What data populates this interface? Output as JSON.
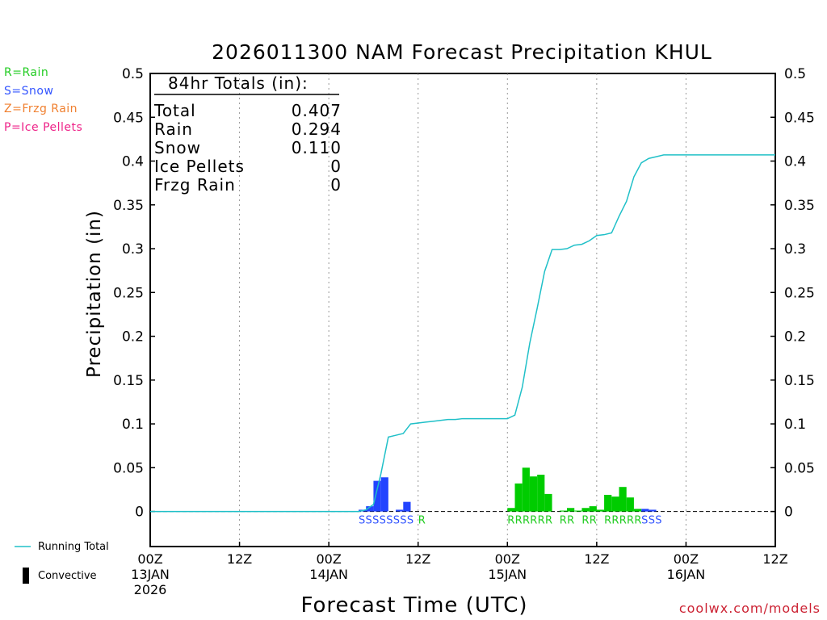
{
  "title": "2026011300 NAM Forecast Precipitation KHUL",
  "legend": [
    {
      "label": "R=Rain",
      "color": "#22cc22"
    },
    {
      "label": "S=Snow",
      "color": "#3355ff"
    },
    {
      "label": "Z=Frzg Rain",
      "color": "#f08030"
    },
    {
      "label": "P=Ice Pellets",
      "color": "#ee2288"
    }
  ],
  "bottom_legend": {
    "running_total": "Running Total",
    "convective": "Convective"
  },
  "totals": {
    "title": "84hr Totals (in):",
    "rows": [
      {
        "label": "Total",
        "value": "0.407"
      },
      {
        "label": "Rain",
        "value": "0.294"
      },
      {
        "label": "Snow",
        "value": "0.110"
      },
      {
        "label": "Ice Pellets",
        "value": "0"
      },
      {
        "label": "Frzg Rain",
        "value": "0"
      }
    ]
  },
  "watermark": "coolwx.com/models",
  "chart_data": {
    "type": "bar",
    "title": "2026011300 NAM Forecast Precipitation KHUL",
    "xlabel": "Forecast Time (UTC)",
    "ylabel": "Precipitation (in)",
    "ylim": [
      -0.04,
      0.5
    ],
    "xlim_hours": [
      0,
      84
    ],
    "yticks": [
      {
        "v": 0,
        "label": "0"
      },
      {
        "v": 0.05,
        "label": "0.05"
      },
      {
        "v": 0.1,
        "label": "0.1"
      },
      {
        "v": 0.15,
        "label": "0.15"
      },
      {
        "v": 0.2,
        "label": "0.2"
      },
      {
        "v": 0.25,
        "label": "0.25"
      },
      {
        "v": 0.3,
        "label": "0.3"
      },
      {
        "v": 0.35,
        "label": "0.35"
      },
      {
        "v": 0.4,
        "label": "0.4"
      },
      {
        "v": 0.45,
        "label": "0.45"
      },
      {
        "v": 0.5,
        "label": "0.5"
      }
    ],
    "xticks": [
      {
        "hour": 0,
        "lines": [
          "00Z",
          "13JAN",
          "2026"
        ]
      },
      {
        "hour": 12,
        "lines": [
          "12Z"
        ]
      },
      {
        "hour": 24,
        "lines": [
          "00Z",
          "14JAN"
        ]
      },
      {
        "hour": 36,
        "lines": [
          "12Z"
        ]
      },
      {
        "hour": 48,
        "lines": [
          "00Z",
          "15JAN"
        ]
      },
      {
        "hour": 60,
        "lines": [
          "12Z"
        ]
      },
      {
        "hour": 72,
        "lines": [
          "00Z",
          "16JAN"
        ]
      },
      {
        "hour": 84,
        "lines": [
          "12Z"
        ]
      }
    ],
    "series": [
      {
        "name": "Snow",
        "color": "#2244ff",
        "hours": [
          29,
          30,
          31,
          32,
          34,
          35
        ],
        "values": [
          0.002,
          0.006,
          0.035,
          0.039,
          0.002,
          0.011
        ]
      },
      {
        "name": "Rain",
        "color": "#00cc00",
        "hours": [
          49,
          50,
          51,
          52,
          53,
          54,
          56,
          57,
          58,
          59,
          60,
          61,
          62,
          63,
          64,
          65,
          66
        ],
        "values": [
          0.004,
          0.032,
          0.05,
          0.04,
          0.042,
          0.02,
          0.001,
          0.004,
          0.001,
          0.004,
          0.006,
          0.002,
          0.019,
          0.017,
          0.028,
          0.016,
          0.003
        ]
      },
      {
        "name": "Snow late",
        "color": "#2244ff",
        "hours": [
          67,
          68
        ],
        "values": [
          0.003,
          0.002
        ]
      }
    ],
    "running_total": {
      "name": "Running Total",
      "color": "#20c0c8",
      "hours": [
        0,
        28,
        29,
        30,
        31,
        32,
        33,
        34,
        35,
        36,
        37,
        38,
        39,
        40,
        41,
        42,
        43,
        44,
        45,
        46,
        47,
        48,
        49,
        50,
        51,
        52,
        53,
        54,
        55,
        56,
        57,
        58,
        59,
        60,
        61,
        62,
        63,
        64,
        65,
        66,
        67,
        68,
        69,
        70,
        84
      ],
      "values": [
        0,
        0,
        0.002,
        0.008,
        0.043,
        0.085,
        0.087,
        0.089,
        0.1,
        0.101,
        0.102,
        0.103,
        0.104,
        0.105,
        0.105,
        0.106,
        0.106,
        0.106,
        0.106,
        0.106,
        0.106,
        0.106,
        0.11,
        0.142,
        0.192,
        0.232,
        0.274,
        0.299,
        0.299,
        0.3,
        0.304,
        0.305,
        0.309,
        0.315,
        0.316,
        0.318,
        0.337,
        0.354,
        0.382,
        0.398,
        0.403,
        0.405,
        0.407,
        0.407,
        0.407
      ]
    },
    "ptype_labels": [
      {
        "text": "SSSSSSSS",
        "hour": 28.5,
        "color": "#3355ff"
      },
      {
        "text": "R",
        "hour": 36.5,
        "color": "#22cc22"
      },
      {
        "text": "RRRRRR",
        "hour": 48.5,
        "color": "#22cc22"
      },
      {
        "text": "RR",
        "hour": 55.5,
        "color": "#22cc22"
      },
      {
        "text": "RR",
        "hour": 58.5,
        "color": "#22cc22"
      },
      {
        "text": "RRRRR",
        "hour": 61.5,
        "color": "#22cc22"
      },
      {
        "text": "SSS",
        "hour": 66.5,
        "color": "#3355ff"
      }
    ]
  }
}
